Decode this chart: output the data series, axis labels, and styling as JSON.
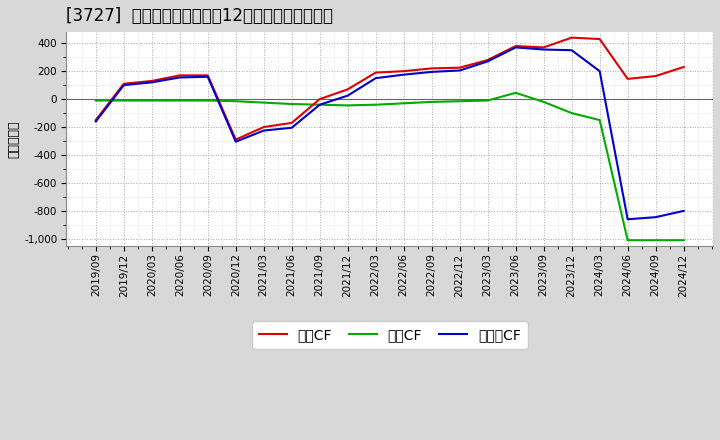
{
  "title": "[3727]  キャッシュフローの12か月移動合計の推移",
  "ylabel": "（百万円）",
  "ylim": [
    -1050,
    480
  ],
  "yticks": [
    -1000,
    -800,
    -600,
    -400,
    -200,
    0,
    200,
    400
  ],
  "dates": [
    "2019/09",
    "2019/12",
    "2020/03",
    "2020/06",
    "2020/09",
    "2020/12",
    "2021/03",
    "2021/06",
    "2021/09",
    "2021/12",
    "2022/03",
    "2022/06",
    "2022/09",
    "2022/12",
    "2023/03",
    "2023/06",
    "2023/09",
    "2023/12",
    "2024/03",
    "2024/06",
    "2024/09",
    "2024/12"
  ],
  "operating_cf": [
    -150,
    110,
    130,
    170,
    170,
    -290,
    -200,
    -170,
    0,
    70,
    190,
    200,
    220,
    225,
    280,
    380,
    370,
    440,
    430,
    145,
    165,
    230
  ],
  "investing_cf": [
    -10,
    -10,
    -10,
    -10,
    -10,
    -15,
    -25,
    -35,
    -40,
    -45,
    -40,
    -30,
    -20,
    -15,
    -10,
    45,
    -20,
    -100,
    -150,
    -1010,
    -1010,
    -1010
  ],
  "free_cf": [
    -160,
    100,
    120,
    155,
    160,
    -305,
    -225,
    -205,
    -40,
    25,
    150,
    175,
    195,
    205,
    270,
    370,
    355,
    350,
    200,
    -860,
    -845,
    -800
  ],
  "operating_color": "#dd0000",
  "investing_color": "#00aa00",
  "free_color": "#0000cc",
  "legend_labels": [
    "営業CF",
    "投資CF",
    "フリーCF"
  ],
  "outer_bg": "#d8d8d8",
  "plot_bg": "#ffffff",
  "title_fontsize": 12,
  "label_fontsize": 9,
  "tick_fontsize": 7.5,
  "legend_fontsize": 10
}
